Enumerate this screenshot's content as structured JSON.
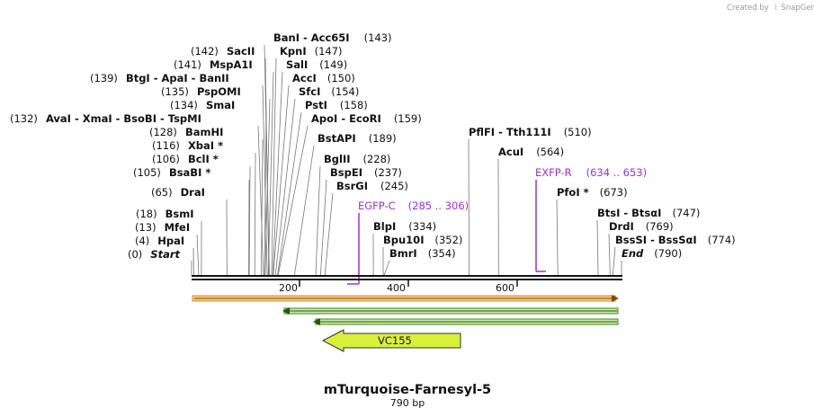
{
  "credit": {
    "created_by": "Created by",
    "app": "SnapGene"
  },
  "map": {
    "name": "mTurquoise-Farnesyl-5",
    "length_label": "790 bp",
    "length": 790,
    "ticks": [
      "200",
      "400",
      "600"
    ],
    "colors": {
      "primer": "#9b30d9",
      "orange": "#e88a1a",
      "green": "#3a8a1a",
      "vc155": "#d8f03a"
    }
  },
  "sites": [
    {
      "pos": 0,
      "pos_label": "(0)",
      "name": "Start",
      "italic": true
    },
    {
      "pos": 4,
      "pos_label": "(4)",
      "name": "HpaI"
    },
    {
      "pos": 13,
      "pos_label": "(13)",
      "name": "MfeI"
    },
    {
      "pos": 18,
      "pos_label": "(18)",
      "name": "BsmI"
    },
    {
      "pos": 65,
      "pos_label": "(65)",
      "name": "DraI"
    },
    {
      "pos": 105,
      "pos_label": "(105)",
      "name": "BsaBI *"
    },
    {
      "pos": 106,
      "pos_label": "(106)",
      "name": "BclI *"
    },
    {
      "pos": 116,
      "pos_label": "(116)",
      "name": "XbaI *"
    },
    {
      "pos": 128,
      "pos_label": "(128)",
      "name": "BamHI"
    },
    {
      "pos": 132,
      "pos_label": "(132)",
      "name": "AvaI  -  XmaI  -  BsoBI  -  TspMI"
    },
    {
      "pos": 134,
      "pos_label": "(134)",
      "name": "SmaI"
    },
    {
      "pos": 135,
      "pos_label": "(135)",
      "name": "PspOMI"
    },
    {
      "pos": 139,
      "pos_label": "(139)",
      "name": "BtgI  -  ApaI  -  BanII"
    },
    {
      "pos": 141,
      "pos_label": "(141)",
      "name": "MspA1I"
    },
    {
      "pos": 142,
      "pos_label": "(142)",
      "name": "SacII"
    },
    {
      "pos": 143,
      "pos_label": "(143)",
      "name": "BanI  -  Acc65I"
    },
    {
      "pos": 147,
      "pos_label": "(147)",
      "name": "KpnI"
    },
    {
      "pos": 149,
      "pos_label": "(149)",
      "name": "SalI"
    },
    {
      "pos": 150,
      "pos_label": "(150)",
      "name": "AccI"
    },
    {
      "pos": 154,
      "pos_label": "(154)",
      "name": "SfcI"
    },
    {
      "pos": 158,
      "pos_label": "(158)",
      "name": "PstI"
    },
    {
      "pos": 159,
      "pos_label": "(159)",
      "name": "ApoI  -  EcoRI"
    },
    {
      "pos": 189,
      "pos_label": "(189)",
      "name": "BstAPI"
    },
    {
      "pos": 228,
      "pos_label": "(228)",
      "name": "BglII"
    },
    {
      "pos": 237,
      "pos_label": "(237)",
      "name": "BspEI"
    },
    {
      "pos": 245,
      "pos_label": "(245)",
      "name": "BsrGI"
    },
    {
      "pos": 334,
      "pos_label": "(334)",
      "name": "BlpI"
    },
    {
      "pos": 352,
      "pos_label": "(352)",
      "name": "Bpu10I"
    },
    {
      "pos": 354,
      "pos_label": "(354)",
      "name": "BmrI"
    },
    {
      "pos": 510,
      "pos_label": "(510)",
      "name": "PflFI  -  Tth111I"
    },
    {
      "pos": 564,
      "pos_label": "(564)",
      "name": "AcuI"
    },
    {
      "pos": 673,
      "pos_label": "(673)",
      "name": "PfoI *"
    },
    {
      "pos": 747,
      "pos_label": "(747)",
      "name": "BtsI  -  BtsαI"
    },
    {
      "pos": 769,
      "pos_label": "(769)",
      "name": "DrdI"
    },
    {
      "pos": 774,
      "pos_label": "(774)",
      "name": "BssSI  -  BssSαI"
    },
    {
      "pos": 790,
      "pos_label": "(790)",
      "name": "End",
      "italic": true
    }
  ],
  "primers": [
    {
      "name": "EGFP-C",
      "range": "(285 .. 306)",
      "start": 285,
      "end": 306,
      "direction": "reverse"
    },
    {
      "name": "EXFP-R",
      "range": "(634 .. 653)",
      "start": 634,
      "end": 653,
      "direction": "reverse"
    }
  ],
  "features": [
    {
      "name": "orange-arrow",
      "start": 0,
      "end": 790,
      "direction": "forward"
    },
    {
      "name": "green-arrow-1",
      "start": 165,
      "end": 790,
      "direction": "reverse"
    },
    {
      "name": "green-arrow-2",
      "start": 225,
      "end": 790,
      "direction": "reverse"
    },
    {
      "name": "VC155",
      "label": "VC155",
      "start": 240,
      "end": 495,
      "direction": "reverse"
    }
  ]
}
